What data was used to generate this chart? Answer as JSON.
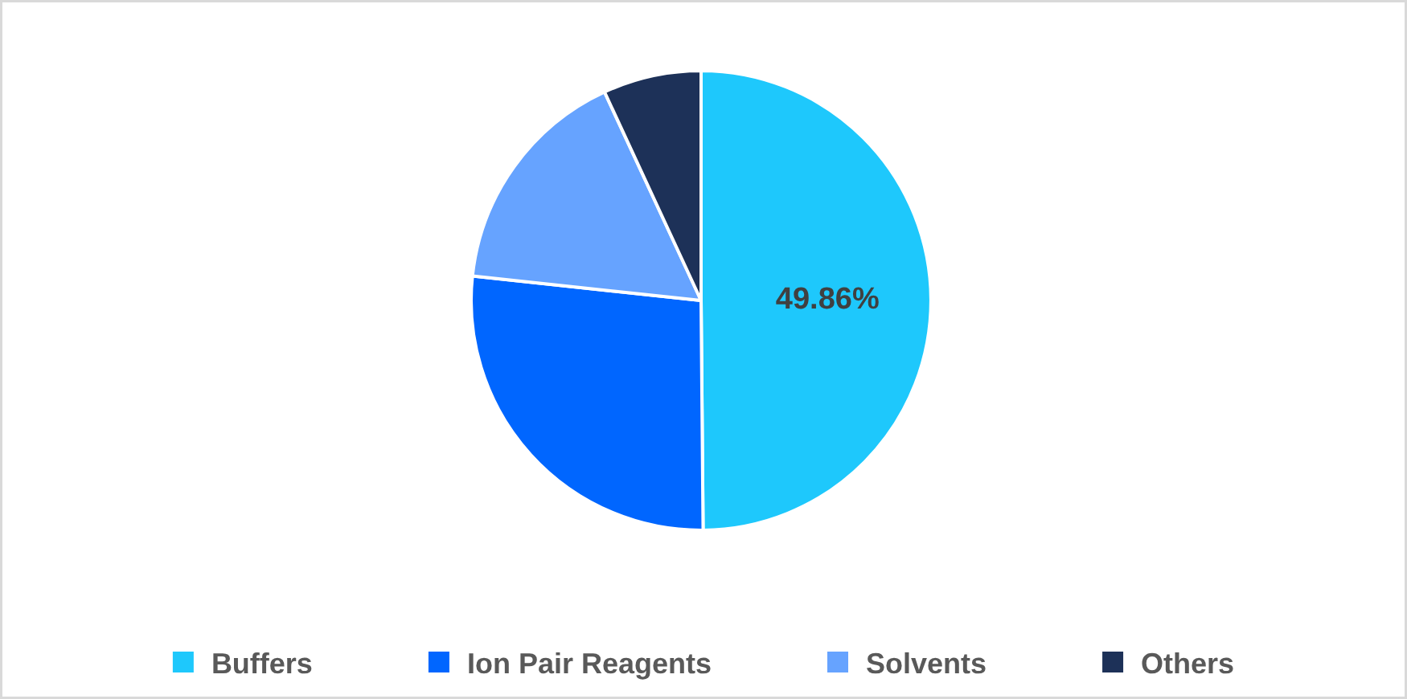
{
  "chart_data": {
    "type": "pie",
    "categories": [
      "Buffers",
      "Ion Pair Reagents",
      "Solvents",
      "Others"
    ],
    "values": [
      49.86,
      26.84,
      16.4,
      6.9
    ],
    "colors": [
      "#1ec8fc",
      "#0066ff",
      "#66a3ff",
      "#1d3158"
    ],
    "value_labels": [
      "49.86%",
      null,
      null,
      null
    ],
    "legend": "bottom"
  }
}
